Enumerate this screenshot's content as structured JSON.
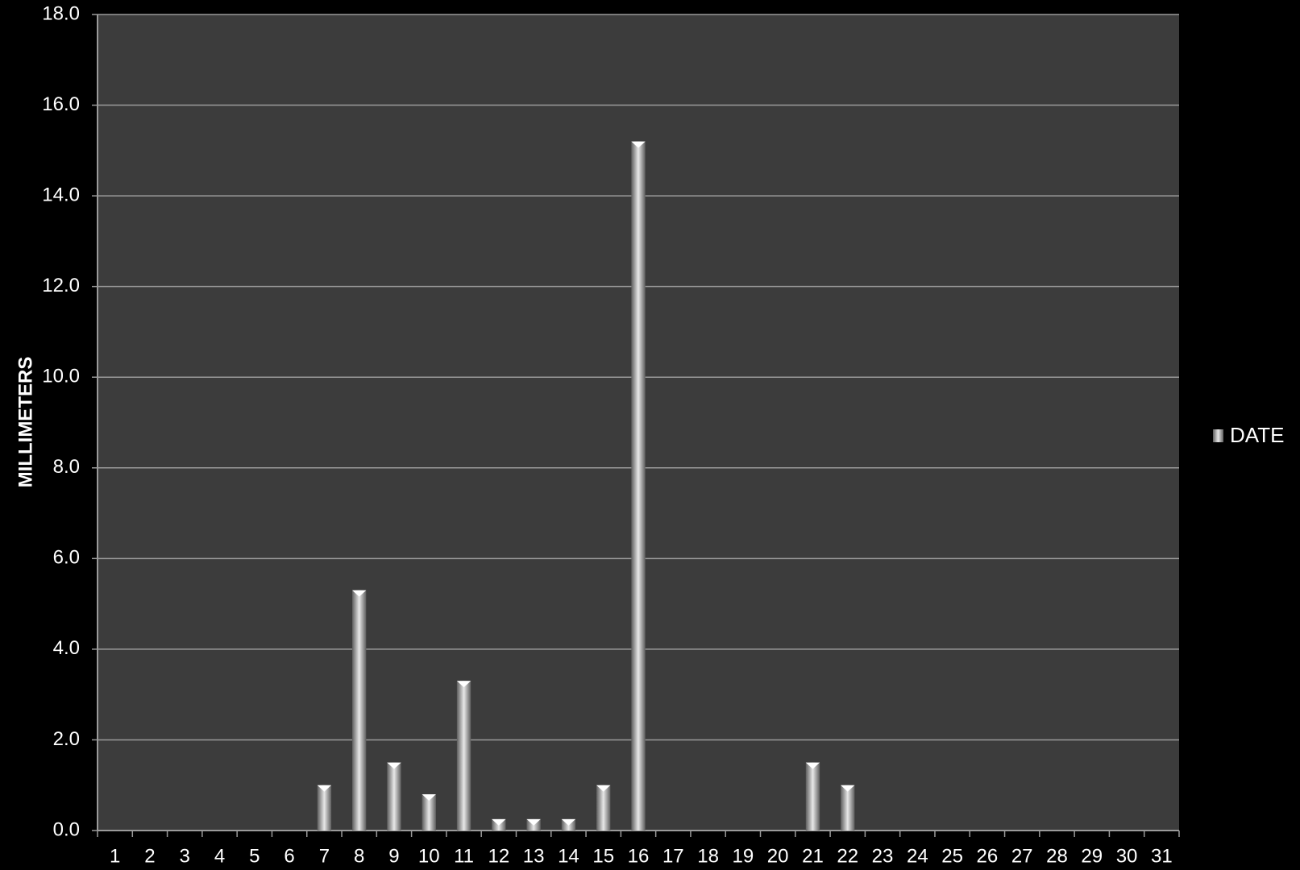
{
  "chart_data": {
    "type": "bar",
    "title": "",
    "xlabel": "",
    "ylabel": "MILLIMETERS",
    "ylim": [
      0,
      18
    ],
    "y_ticks": [
      "0.0",
      "2.0",
      "4.0",
      "6.0",
      "8.0",
      "10.0",
      "12.0",
      "14.0",
      "16.0",
      "18.0"
    ],
    "grid": true,
    "legend_position": "right",
    "categories": [
      "1",
      "2",
      "3",
      "4",
      "5",
      "6",
      "7",
      "8",
      "9",
      "10",
      "11",
      "12",
      "13",
      "14",
      "15",
      "16",
      "17",
      "18",
      "19",
      "20",
      "21",
      "22",
      "23",
      "24",
      "25",
      "26",
      "27",
      "28",
      "29",
      "30",
      "31"
    ],
    "series": [
      {
        "name": "DATE",
        "values": [
          0,
          0,
          0,
          0,
          0,
          0,
          1.0,
          5.3,
          1.5,
          0.8,
          3.3,
          0.25,
          0.25,
          0.25,
          1.0,
          15.2,
          0,
          0,
          0,
          0,
          1.5,
          1.0,
          0,
          0,
          0,
          0,
          0,
          0,
          0,
          0,
          0
        ]
      }
    ],
    "colors": {
      "page_background": "#000000",
      "plot_background": "#3c3c3c",
      "gridline": "#9a9a9a",
      "bar_light": "#e6e6e6",
      "bar_dark": "#6e6e6e",
      "text": "#ffffff"
    }
  }
}
